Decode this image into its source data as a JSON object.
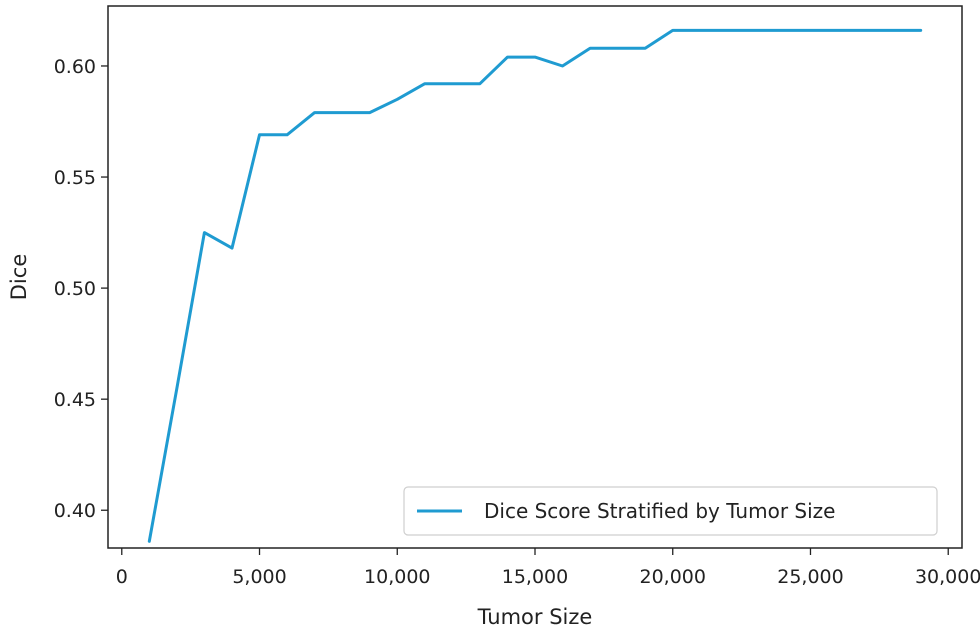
{
  "chart_data": {
    "type": "line",
    "title": "",
    "xlabel": "Tumor Size",
    "ylabel": "Dice",
    "xlim": [
      -500,
      30500
    ],
    "ylim": [
      0.383,
      0.627
    ],
    "grid": false,
    "legend_position": "lower-right",
    "x_ticks": [
      {
        "value": 0,
        "label": "0"
      },
      {
        "value": 5000,
        "label": "5,000"
      },
      {
        "value": 10000,
        "label": "10,000"
      },
      {
        "value": 15000,
        "label": "15,000"
      },
      {
        "value": 20000,
        "label": "20,000"
      },
      {
        "value": 25000,
        "label": "25,000"
      },
      {
        "value": 30000,
        "label": "30,000"
      }
    ],
    "y_ticks": [
      {
        "value": 0.4,
        "label": "0.40"
      },
      {
        "value": 0.45,
        "label": "0.45"
      },
      {
        "value": 0.5,
        "label": "0.50"
      },
      {
        "value": 0.55,
        "label": "0.55"
      },
      {
        "value": 0.6,
        "label": "0.60"
      }
    ],
    "series": [
      {
        "name": "Dice Score Stratified by Tumor Size",
        "color": "#1f9bd1",
        "x": [
          1000,
          2000,
          3000,
          4000,
          5000,
          6000,
          7000,
          8000,
          9000,
          10000,
          11000,
          12000,
          13000,
          14000,
          15000,
          16000,
          17000,
          18000,
          19000,
          20000,
          21000,
          22000,
          23000,
          24000,
          25000,
          26000,
          27000,
          28000,
          29000
        ],
        "values": [
          0.386,
          0.455,
          0.525,
          0.518,
          0.569,
          0.569,
          0.579,
          0.579,
          0.579,
          0.585,
          0.592,
          0.592,
          0.592,
          0.604,
          0.604,
          0.6,
          0.608,
          0.608,
          0.608,
          0.616,
          0.616,
          0.616,
          0.616,
          0.616,
          0.616,
          0.616,
          0.616,
          0.616,
          0.616
        ]
      }
    ]
  }
}
